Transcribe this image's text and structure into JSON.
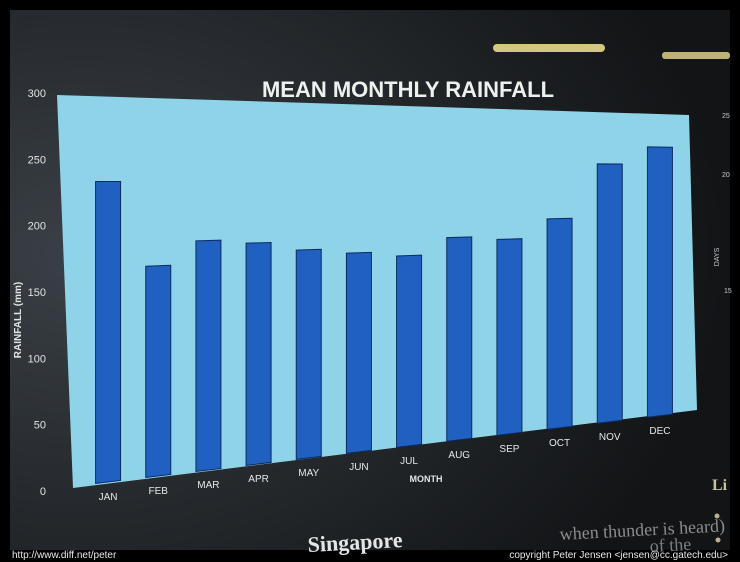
{
  "chart_data": {
    "type": "bar",
    "title": "MEAN MONTHLY RAINFALL",
    "xlabel": "MONTH",
    "ylabel": "RAINFALL (mm)",
    "ylim": [
      0,
      300
    ],
    "yticks": [
      0,
      50,
      100,
      150,
      200,
      250,
      300
    ],
    "categories": [
      "JAN",
      "FEB",
      "MAR",
      "APR",
      "MAY",
      "JUN",
      "JUL",
      "AUG",
      "SEP",
      "OCT",
      "NOV",
      "DEC"
    ],
    "values": [
      234,
      167,
      186,
      183,
      176,
      172,
      168,
      183,
      180,
      198,
      250,
      267
    ],
    "grid": false,
    "colors": {
      "bar": "#2060c0",
      "plot_bg": "#8fd3e8",
      "panel_bg": "#22262a"
    }
  },
  "right_axis": {
    "label": "DAYS",
    "ticks": [
      "25",
      "20",
      "15"
    ]
  },
  "background_text": {
    "singapore": "Singapore",
    "thunder": "when thunder is heard)",
    "of_the": "of the",
    "side_heading": "Li"
  },
  "footer": {
    "left": "http://www.diff.net/peter",
    "right": "copyright Peter Jensen <jensen@cc.gatech.edu>"
  }
}
